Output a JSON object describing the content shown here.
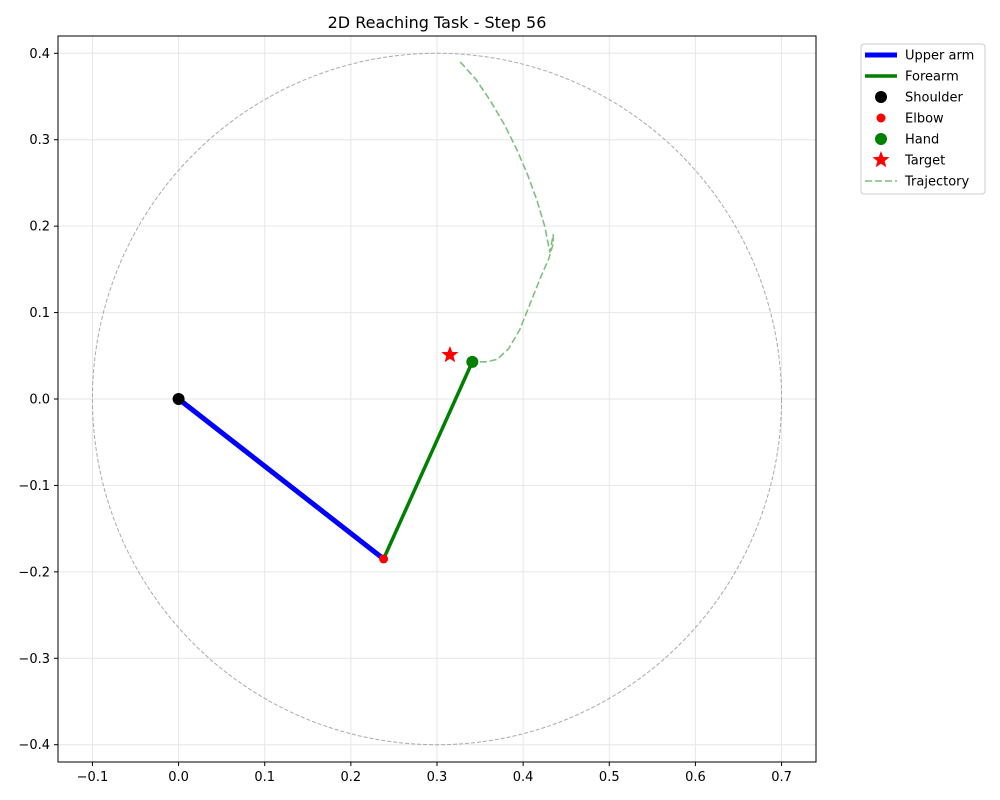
{
  "chart_data": {
    "type": "scatter",
    "title": "2D Reaching Task - Step 56",
    "xlabel": "",
    "ylabel": "",
    "xlim": [
      -0.14,
      0.74
    ],
    "ylim": [
      -0.42,
      0.42
    ],
    "xticks": [
      -0.1,
      0.0,
      0.1,
      0.2,
      0.3,
      0.4,
      0.5,
      0.6,
      0.7
    ],
    "xtick_labels": [
      "−0.1",
      "0.0",
      "0.1",
      "0.2",
      "0.3",
      "0.4",
      "0.5",
      "0.6",
      "0.7"
    ],
    "yticks": [
      0.4,
      0.3,
      0.2,
      0.1,
      0.0,
      -0.1,
      -0.2,
      -0.3,
      -0.4
    ],
    "ytick_labels": [
      "0.4",
      "0.3",
      "0.2",
      "0.1",
      "0.0",
      "−0.1",
      "−0.2",
      "−0.3",
      "−0.4"
    ],
    "grid": true,
    "legend_position": "outside-top-right",
    "workspace_circle": {
      "center": [
        0.3,
        0.0
      ],
      "radius": 0.4,
      "color": "#aaaaaa"
    },
    "series": [
      {
        "name": "Upper arm",
        "kind": "line",
        "color": "#0000ff",
        "x": [
          0.0,
          0.238
        ],
        "y": [
          0.0,
          -0.185
        ]
      },
      {
        "name": "Forearm",
        "kind": "line",
        "color": "#008000",
        "x": [
          0.238,
          0.341
        ],
        "y": [
          -0.185,
          0.043
        ]
      },
      {
        "name": "Shoulder",
        "kind": "point",
        "color": "#000000",
        "x": [
          0.0
        ],
        "y": [
          0.0
        ]
      },
      {
        "name": "Elbow",
        "kind": "point",
        "color": "#ff0000",
        "x": [
          0.238
        ],
        "y": [
          -0.185
        ]
      },
      {
        "name": "Hand",
        "kind": "point",
        "color": "#008000",
        "x": [
          0.341
        ],
        "y": [
          0.043
        ]
      },
      {
        "name": "Target",
        "kind": "star",
        "color": "#ff0000",
        "x": [
          0.315
        ],
        "y": [
          0.051
        ]
      },
      {
        "name": "Trajectory",
        "kind": "dashed-line",
        "color": "#7fbf7f",
        "x": [
          0.327,
          0.345,
          0.362,
          0.378,
          0.392,
          0.405,
          0.416,
          0.425,
          0.431,
          0.435,
          0.435,
          0.43,
          0.42,
          0.408,
          0.396,
          0.383,
          0.37,
          0.358,
          0.349,
          0.341
        ],
        "y": [
          0.39,
          0.37,
          0.345,
          0.318,
          0.29,
          0.26,
          0.23,
          0.2,
          0.17,
          0.19,
          0.18,
          0.163,
          0.14,
          0.11,
          0.08,
          0.058,
          0.046,
          0.043,
          0.043,
          0.043
        ]
      }
    ]
  }
}
